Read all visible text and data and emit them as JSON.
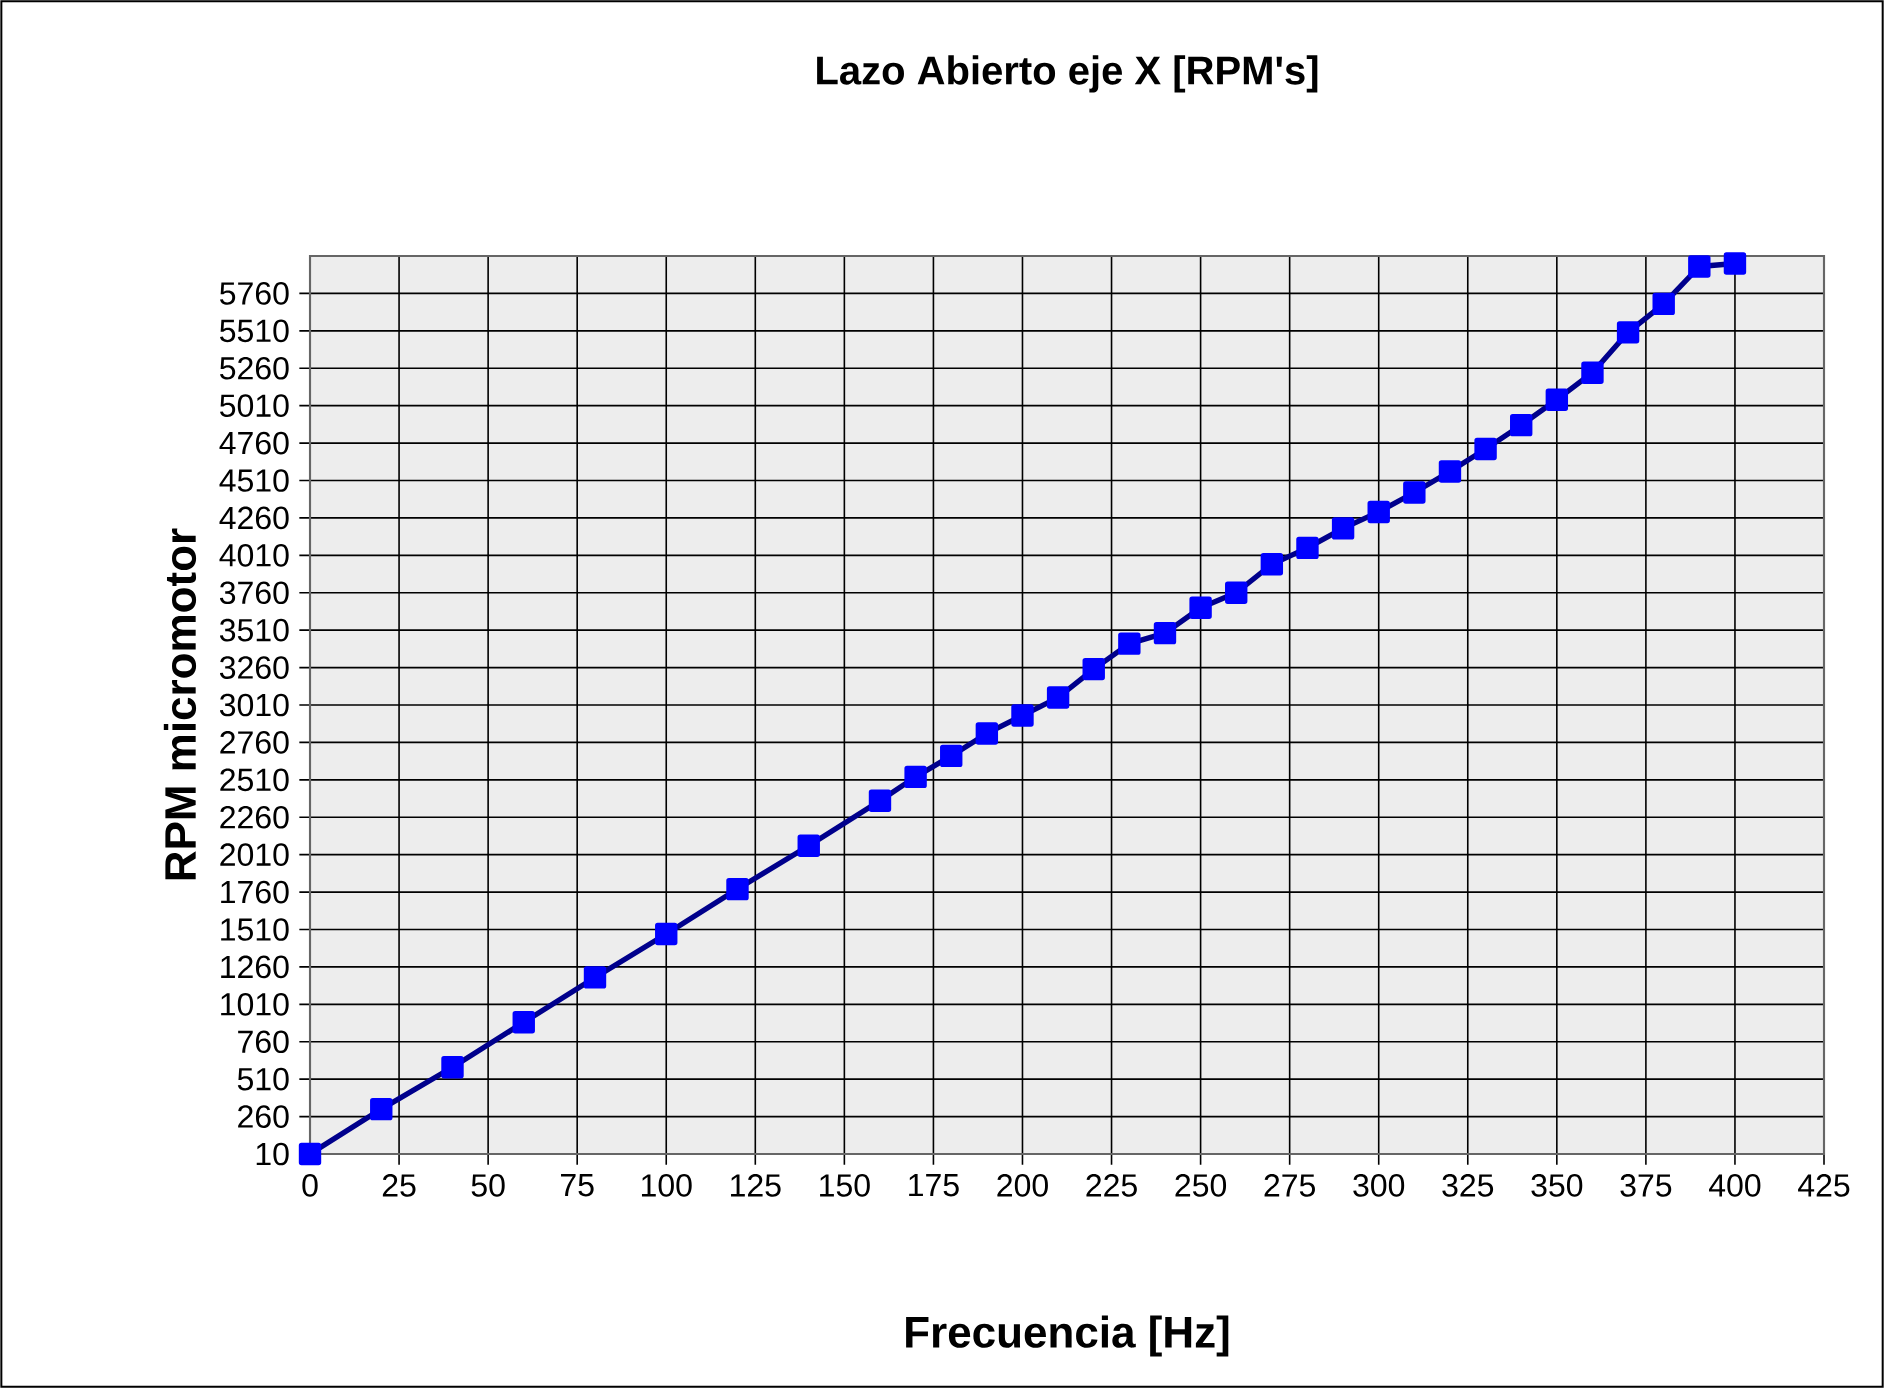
{
  "chart_data": {
    "type": "line",
    "title": "Lazo Abierto eje X [RPM's]",
    "xlabel": "Frecuencia [Hz]",
    "ylabel": "RPM micromotor",
    "x": [
      0,
      20,
      40,
      60,
      80,
      100,
      120,
      140,
      160,
      170,
      180,
      190,
      200,
      210,
      220,
      230,
      240,
      250,
      260,
      270,
      280,
      290,
      300,
      310,
      320,
      330,
      340,
      350,
      360,
      370,
      380,
      390,
      400
    ],
    "series": [
      {
        "color": "#0000ff",
        "values": [
          10,
          310,
          590,
          890,
          1190,
          1480,
          1780,
          2070,
          2370,
          2530,
          2670,
          2820,
          2940,
          3060,
          3250,
          3420,
          3490,
          3660,
          3760,
          3950,
          4060,
          4190,
          4300,
          4430,
          4570,
          4720,
          4880,
          5050,
          5230,
          5500,
          5690,
          5940,
          5960
        ]
      }
    ],
    "xlim": [
      0,
      425
    ],
    "ylim": [
      10,
      6010
    ],
    "xticks": [
      0,
      25,
      50,
      75,
      100,
      125,
      150,
      175,
      200,
      225,
      250,
      275,
      300,
      325,
      350,
      375,
      400,
      425
    ],
    "yticks": [
      10,
      260,
      510,
      760,
      1010,
      1260,
      1510,
      1760,
      2010,
      2260,
      2510,
      2760,
      3010,
      3260,
      3510,
      3760,
      4010,
      4260,
      4510,
      4760,
      5010,
      5260,
      5510,
      5760
    ],
    "grid": true,
    "marker": "square",
    "line_style": "solid"
  }
}
